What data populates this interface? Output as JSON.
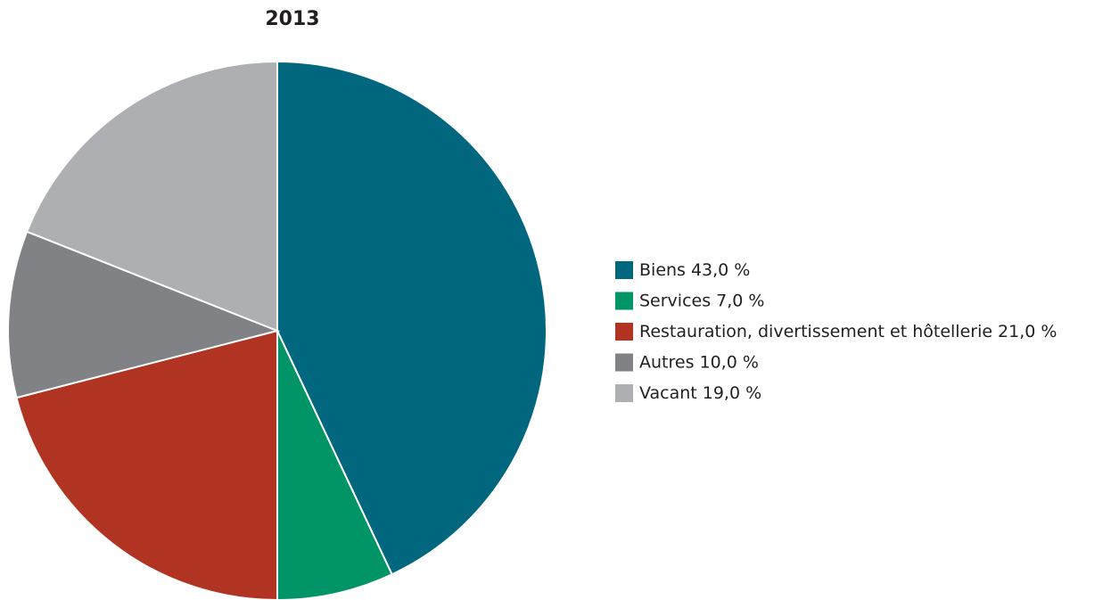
{
  "chart_data": {
    "type": "pie",
    "title": "2013",
    "categories": [
      "Biens",
      "Services",
      "Restauration, divertissement et hôtellerie",
      "Autres",
      "Vacant"
    ],
    "values": [
      43,
      7,
      21,
      10,
      19
    ],
    "value_labels": [
      "43,0 %",
      "7,0 %",
      "21,0 %",
      "10,0 %",
      "19,0 %"
    ],
    "colors": [
      "#00677f",
      "#009466",
      "#b03421",
      "#808285",
      "#aeafb2"
    ],
    "legend": "right"
  }
}
